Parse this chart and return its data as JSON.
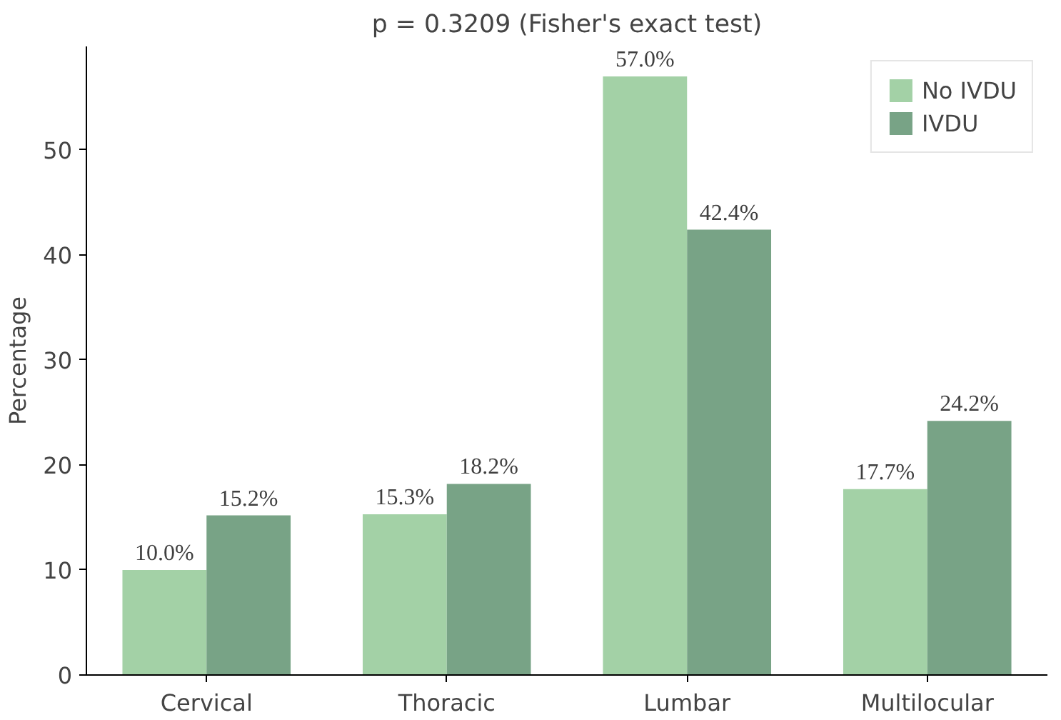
{
  "chart_data": {
    "type": "bar",
    "title": "p = 0.3209 (Fisher's exact test)",
    "ylabel": "Percentage",
    "categories": [
      "Cervical",
      "Thoracic",
      "Lumbar",
      "Multilocular"
    ],
    "series": [
      {
        "name": "No IVDU",
        "color": "#a3d1a6",
        "values": [
          10.0,
          15.3,
          57.0,
          17.7
        ],
        "value_labels": [
          "10.0%",
          "15.3%",
          "57.0%",
          "17.7%"
        ]
      },
      {
        "name": "IVDU",
        "color": "#78a386",
        "values": [
          15.2,
          18.2,
          42.4,
          24.2
        ],
        "value_labels": [
          "15.2%",
          "18.2%",
          "42.4%",
          "24.2%"
        ]
      }
    ],
    "ylim": [
      0,
      59.85
    ],
    "yticks": [
      0,
      10,
      20,
      30,
      40,
      50
    ],
    "grid": false,
    "legend": "top right"
  }
}
